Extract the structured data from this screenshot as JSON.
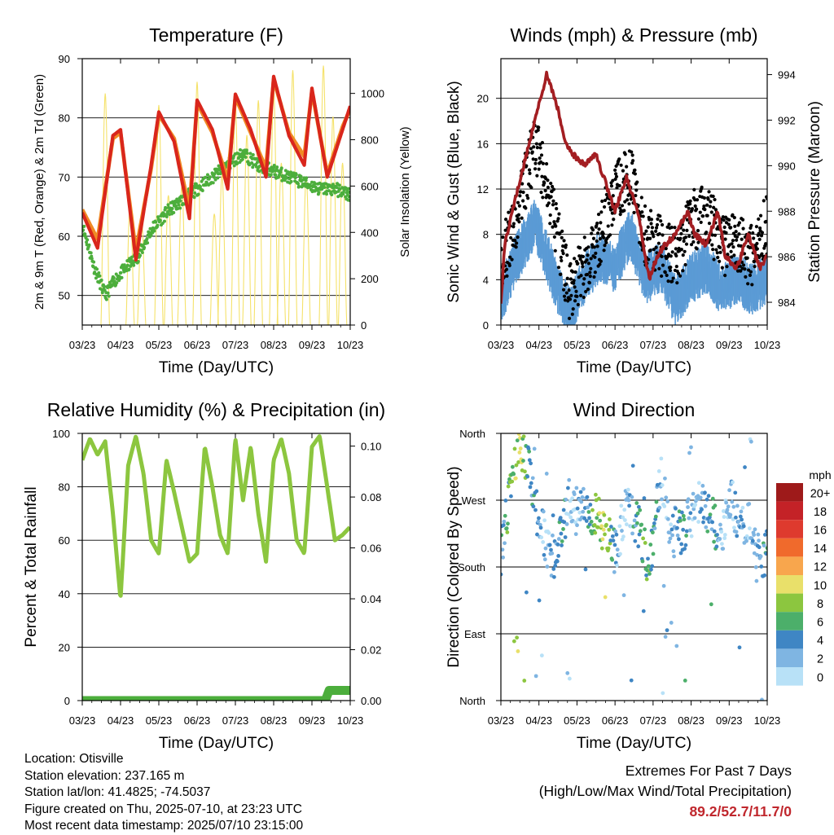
{
  "chart_data": [
    {
      "id": "temperature",
      "type": "line",
      "title": "Temperature (F)",
      "xlabel": "Time (Day/UTC)",
      "ylabel": "2m & 9m T (Red, Orange) & 2m Td (Green)",
      "ylabel_right": "Solar Insolation (Yellow)",
      "x_ticks": [
        "03/23",
        "04/23",
        "05/23",
        "06/23",
        "07/23",
        "08/23",
        "09/23",
        "10/23"
      ],
      "ylim": [
        45,
        90
      ],
      "y_ticks": [
        50,
        60,
        70,
        80,
        90
      ],
      "ylim_right": [
        0,
        1150
      ],
      "y_ticks_right": [
        0,
        200,
        400,
        600,
        800,
        1000
      ],
      "grid": "horizontal",
      "colors": {
        "t2m": "#d9261c",
        "t9m": "#f08a24",
        "td": "#4cae3c",
        "solar": "#f5e26b"
      },
      "series": [
        {
          "key": "t2m",
          "x": [
            3.0,
            3.4,
            3.8,
            4.0,
            4.4,
            4.8,
            5.0,
            5.4,
            5.8,
            6.0,
            6.4,
            6.8,
            7.0,
            7.4,
            7.8,
            8.0,
            8.4,
            8.8,
            9.0,
            9.4,
            9.8,
            10.0
          ],
          "values": [
            64,
            58,
            77,
            78,
            56,
            72,
            81,
            76,
            63,
            83,
            78,
            68,
            84,
            78,
            70,
            87,
            77,
            72,
            85,
            70,
            78,
            82
          ]
        },
        {
          "key": "t9m",
          "x": [
            3.0,
            3.4,
            3.8,
            4.0,
            4.4,
            4.8,
            5.0,
            5.4,
            5.8,
            6.0,
            6.4,
            6.8,
            7.0,
            7.4,
            7.8,
            8.0,
            8.4,
            8.8,
            9.0,
            9.4,
            9.8,
            10.0
          ],
          "values": [
            64,
            59,
            76,
            77,
            57,
            71,
            80,
            76,
            64,
            82,
            77,
            69,
            83,
            77,
            71,
            86,
            77,
            73,
            84,
            70,
            78,
            81
          ]
        },
        {
          "key": "td",
          "x": [
            3.0,
            3.3,
            3.6,
            3.9,
            4.2,
            4.5,
            4.8,
            5.2,
            5.6,
            6.0,
            6.4,
            6.8,
            7.2,
            7.6,
            8.0,
            8.4,
            8.8,
            9.2,
            9.6,
            10.0
          ],
          "values": [
            62,
            55,
            50,
            53,
            55,
            57,
            61,
            64,
            66,
            68,
            70,
            72,
            74,
            72,
            71,
            70,
            69,
            68,
            68,
            67
          ]
        },
        {
          "key": "solar",
          "peaks_x": [
            3.6,
            4.25,
            4.55,
            5.0,
            5.25,
            5.6,
            6.0,
            6.45,
            6.65,
            7.0,
            7.3,
            7.6,
            8.0,
            8.2,
            8.5,
            8.85,
            9.3,
            9.55,
            9.8
          ],
          "peaks_v": [
            1000,
            520,
            450,
            950,
            560,
            600,
            1050,
            480,
            650,
            950,
            820,
            970,
            1020,
            700,
            1100,
            640,
            1120,
            900,
            700
          ]
        }
      ]
    },
    {
      "id": "winds",
      "type": "scatter",
      "title": "Winds (mph) & Pressure (mb)",
      "xlabel": "Time (Day/UTC)",
      "ylabel": "Sonic Wind & Gust (Blue, Black)",
      "ylabel_right": "Station Pressure (Maroon)",
      "x_ticks": [
        "03/23",
        "04/23",
        "05/23",
        "06/23",
        "07/23",
        "08/23",
        "09/23",
        "10/23"
      ],
      "ylim": [
        0,
        23.5
      ],
      "y_ticks": [
        0,
        4,
        8,
        12,
        16,
        20
      ],
      "ylim_right": [
        983,
        994.7
      ],
      "y_ticks_right": [
        984,
        986,
        988,
        990,
        992,
        994
      ],
      "grid": "horizontal",
      "colors": {
        "wind": "#5b9bd5",
        "gust": "#000000",
        "pressure": "#a31e22"
      },
      "series": [
        {
          "key": "wind",
          "x": [
            3.0,
            3.3,
            3.6,
            3.9,
            4.2,
            4.5,
            4.8,
            5.2,
            5.6,
            6.0,
            6.4,
            6.8,
            7.2,
            7.6,
            8.0,
            8.4,
            8.8,
            9.2,
            9.6,
            10.0
          ],
          "values": [
            2,
            5,
            7,
            9,
            6,
            3,
            1,
            4,
            6,
            5,
            8,
            4,
            5,
            2,
            4,
            5,
            3,
            4,
            3,
            4
          ]
        },
        {
          "key": "gust",
          "x": [
            3.0,
            3.3,
            3.6,
            3.9,
            4.2,
            4.5,
            4.8,
            5.2,
            5.6,
            6.0,
            6.4,
            6.8,
            7.2,
            7.6,
            8.0,
            8.4,
            8.8,
            9.2,
            9.6,
            10.0
          ],
          "values": [
            6,
            8,
            12,
            16,
            13,
            8,
            3,
            5,
            8,
            12,
            13,
            8,
            7,
            6,
            9,
            10,
            7,
            7,
            6,
            9
          ]
        },
        {
          "key": "pressure",
          "x": [
            3.0,
            3.1,
            3.3,
            3.6,
            3.9,
            4.2,
            4.5,
            4.7,
            4.9,
            5.2,
            5.5,
            5.8,
            6.0,
            6.3,
            6.6,
            6.9,
            7.1,
            7.3,
            7.6,
            7.9,
            8.1,
            8.4,
            8.7,
            8.9,
            9.2,
            9.5,
            9.8,
            10.0
          ],
          "values": [
            983.9,
            986.5,
            988,
            990,
            992,
            994,
            992.5,
            991,
            990.5,
            990,
            990.5,
            989,
            988,
            989.5,
            988,
            985,
            986,
            986.5,
            987,
            988,
            987,
            986.5,
            988,
            986,
            985.5,
            987,
            985.5,
            986
          ]
        }
      ]
    },
    {
      "id": "humidity",
      "type": "line",
      "title": "Relative Humidity (%) & Precipitation (in)",
      "xlabel": "Time (Day/UTC)",
      "ylabel": "Percent & Total Rainfall",
      "x_ticks": [
        "03/23",
        "04/23",
        "05/23",
        "06/23",
        "07/23",
        "08/23",
        "09/23",
        "10/23"
      ],
      "ylim": [
        0,
        100
      ],
      "y_ticks": [
        0,
        20,
        40,
        60,
        80,
        100
      ],
      "ylim_right": [
        0,
        0.105
      ],
      "y_ticks_right": [
        "0.00",
        "0.02",
        "0.04",
        "0.06",
        "0.08",
        "0.10"
      ],
      "grid": "horizontal",
      "colors": {
        "rh": "#8cc63f",
        "rain": "#4cae3c"
      },
      "series": [
        {
          "key": "rh",
          "x": [
            3.0,
            3.2,
            3.4,
            3.6,
            3.8,
            4.0,
            4.2,
            4.4,
            4.6,
            4.8,
            5.0,
            5.2,
            5.4,
            5.6,
            5.8,
            6.0,
            6.2,
            6.4,
            6.6,
            6.8,
            7.0,
            7.2,
            7.4,
            7.6,
            7.8,
            8.0,
            8.2,
            8.4,
            8.6,
            8.8,
            9.0,
            9.2,
            9.4,
            9.6,
            9.8,
            10.0
          ],
          "values": [
            90,
            98,
            92,
            97,
            70,
            38,
            88,
            99,
            85,
            60,
            55,
            90,
            78,
            65,
            52,
            55,
            95,
            80,
            62,
            55,
            98,
            75,
            95,
            70,
            52,
            90,
            98,
            85,
            60,
            55,
            95,
            99,
            80,
            60,
            62,
            65
          ]
        },
        {
          "key": "rain",
          "x": [
            3.0,
            9.35,
            9.45,
            10.0
          ],
          "values": [
            0.0,
            0.0,
            0.004,
            0.004
          ]
        }
      ]
    },
    {
      "id": "direction",
      "type": "scatter",
      "title": "Wind Direction",
      "xlabel": "Time (Day/UTC)",
      "ylabel": "Direction (Colored By Speed)",
      "x_ticks": [
        "03/23",
        "04/23",
        "05/23",
        "06/23",
        "07/23",
        "08/23",
        "09/23",
        "10/23"
      ],
      "y_ticks": [
        "North",
        "East",
        "South",
        "West",
        "North"
      ],
      "ylim": [
        0,
        360
      ],
      "grid": "horizontal",
      "legend": {
        "title": "mph",
        "labels": [
          "20+",
          "18",
          "16",
          "14",
          "12",
          "10",
          "8",
          "6",
          "4",
          "2",
          "0"
        ],
        "colors": [
          "#9e1a1a",
          "#c42227",
          "#de3a2e",
          "#f06a2c",
          "#f8a64d",
          "#e9e06a",
          "#8cc63f",
          "#4caf6a",
          "#3f86c4",
          "#7fb5e2",
          "#b8e1f7"
        ]
      },
      "series": [
        {
          "key": "direction",
          "x": [
            3.0,
            3.3,
            3.5,
            3.7,
            3.9,
            4.2,
            4.4,
            4.6,
            4.8,
            5.2,
            5.5,
            5.8,
            6.0,
            6.3,
            6.6,
            6.9,
            7.2,
            7.5,
            7.8,
            8.0,
            8.3,
            8.6,
            8.8,
            9.0,
            9.3,
            9.5,
            9.8,
            10.0
          ],
          "values": [
            200,
            300,
            340,
            320,
            260,
            210,
            190,
            230,
            270,
            260,
            250,
            220,
            200,
            260,
            240,
            180,
            300,
            220,
            230,
            250,
            270,
            240,
            210,
            280,
            230,
            240,
            190,
            200
          ],
          "speeds": [
            4,
            8,
            10,
            6,
            4,
            2,
            4,
            6,
            2,
            4,
            8,
            10,
            4,
            2,
            6,
            8,
            2,
            4,
            6,
            2,
            4,
            6,
            2,
            2,
            4,
            2,
            4,
            6
          ]
        }
      ]
    }
  ],
  "info": {
    "location": "Location: Otisville",
    "elevation": "Station elevation: 237.165 m",
    "latlon": "Station lat/lon: 41.4825; -74.5037",
    "created": "Figure created on Thu, 2025-07-10, at 23:23 UTC",
    "recent": "Most recent data timestamp: 2025/07/10 23:15:00"
  },
  "extremes": {
    "title": "Extremes For Past 7 Days",
    "subtitle": "(High/Low/Max Wind/Total Precipitation)",
    "values": "89.2/52.7/11.7/0"
  }
}
